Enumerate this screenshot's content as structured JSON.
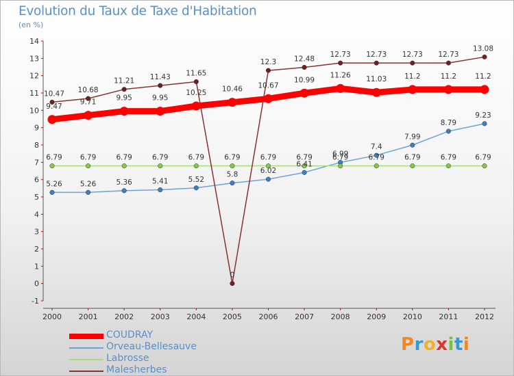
{
  "title": "Evolution du Taux de Taxe d'Habitation",
  "subtitle": "(en %)",
  "logo": {
    "text": "Proxiti",
    "letter_colors": [
      "#f08a20",
      "#2e9ad9",
      "#f2b024",
      "#e0332c",
      "#7bbf3a",
      "#2e9ad9",
      "#f08a20"
    ]
  },
  "chart_data": {
    "type": "line",
    "title": "Evolution du Taux de Taxe d'Habitation",
    "subtitle": "(en %)",
    "xlabel": "",
    "ylabel": "",
    "x": [
      "2000",
      "2001",
      "2002",
      "2003",
      "2004",
      "2005",
      "2006",
      "2007",
      "2008",
      "2009",
      "2010",
      "2011",
      "2012"
    ],
    "ylim": [
      -1,
      14
    ],
    "y_ticks": [
      -1,
      0,
      1,
      2,
      3,
      4,
      5,
      6,
      7,
      8,
      9,
      10,
      11,
      12,
      13,
      14
    ],
    "grid": false,
    "legend_position": "bottom-left",
    "series": [
      {
        "name": "COUDRAY",
        "color": "#ff0000",
        "emphasis": true,
        "values": [
          9.47,
          9.71,
          9.95,
          9.95,
          10.25,
          10.46,
          10.67,
          10.99,
          11.26,
          11.03,
          11.2,
          11.2,
          11.2
        ],
        "labels": [
          "9.47",
          "9.71",
          "9.95",
          "9.95",
          "10.25",
          "10.46",
          "10.67",
          "10.99",
          "11.26",
          "11.03",
          "11.2",
          "11.2",
          "11.2"
        ]
      },
      {
        "name": "Orveau-Bellesauve",
        "color": "#6aa3d8",
        "marker_color": "#3d7fc0",
        "values": [
          5.26,
          5.26,
          5.36,
          5.41,
          5.52,
          5.8,
          6.02,
          6.41,
          6.99,
          7.4,
          7.99,
          8.79,
          9.23
        ],
        "labels": [
          "5.26",
          "5.26",
          "5.36",
          "5.41",
          "5.52",
          "5.8",
          "6.02",
          "6.41",
          "6.99",
          "7.4",
          "7.99",
          "8.79",
          "9.23"
        ]
      },
      {
        "name": "Labrosse",
        "color": "#a8dc78",
        "marker_color": "#84c84a",
        "values": [
          6.79,
          6.79,
          6.79,
          6.79,
          6.79,
          6.79,
          6.79,
          6.79,
          6.79,
          6.79,
          6.79,
          6.79,
          6.79
        ],
        "labels": [
          "6.79",
          "6.79",
          "6.79",
          "6.79",
          "6.79",
          "6.79",
          "6.79",
          "6.79",
          "6.79",
          "6.79",
          "6.79",
          "6.79",
          "6.79"
        ]
      },
      {
        "name": "Malesherbes",
        "color": "#8a3030",
        "marker_color": "#6e1f1f",
        "values": [
          10.47,
          10.68,
          11.21,
          11.43,
          11.65,
          0,
          12.3,
          12.48,
          12.73,
          12.73,
          12.73,
          12.73,
          13.08
        ],
        "labels": [
          "10.47",
          "10.68",
          "11.21",
          "11.43",
          "11.65",
          "0",
          "12.3",
          "12.48",
          "12.73",
          "12.73",
          "12.73",
          "12.73",
          "13.08"
        ]
      }
    ]
  }
}
